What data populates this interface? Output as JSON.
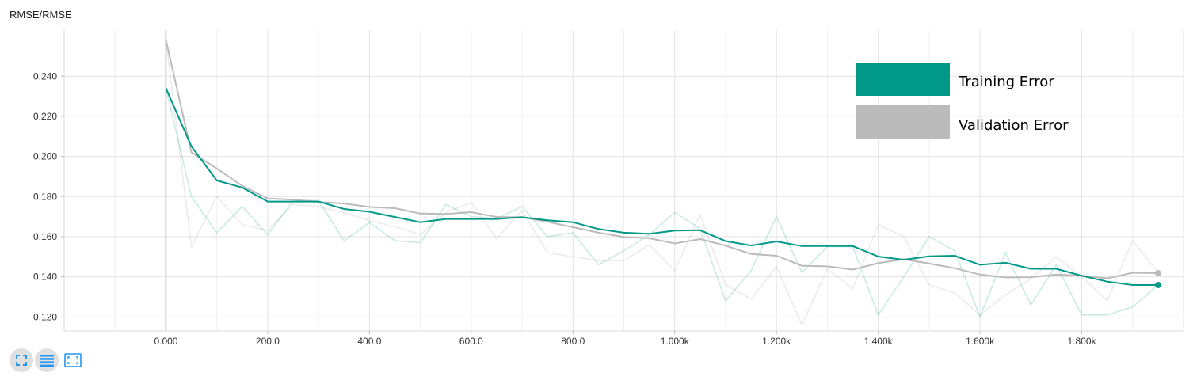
{
  "chart_data": {
    "type": "line",
    "title": "RMSE/RMSE",
    "xlim": [
      -200,
      2000
    ],
    "ylim": [
      0.113,
      0.263
    ],
    "x_ticks": [
      0,
      200,
      400,
      600,
      800,
      1000,
      1200,
      1400,
      1600,
      1800
    ],
    "x_tick_labels": [
      "0.000",
      "200.0",
      "400.0",
      "600.0",
      "800.0",
      "1.000k",
      "1.200k",
      "1.400k",
      "1.600k",
      "1.800k"
    ],
    "y_ticks": [
      0.12,
      0.14,
      0.16,
      0.18,
      0.2,
      0.22,
      0.24
    ],
    "y_tick_labels": [
      "0.120",
      "0.140",
      "0.160",
      "0.180",
      "0.200",
      "0.220",
      "0.240"
    ],
    "grid": true,
    "legend_position": "top-right",
    "x": [
      0,
      50,
      100,
      150,
      200,
      250,
      300,
      350,
      400,
      450,
      500,
      550,
      600,
      650,
      700,
      750,
      800,
      850,
      900,
      950,
      1000,
      1050,
      1100,
      1150,
      1200,
      1250,
      1300,
      1350,
      1400,
      1450,
      1500,
      1550,
      1600,
      1650,
      1700,
      1750,
      1800,
      1850,
      1900,
      1950
    ],
    "series": [
      {
        "name": "Training Error",
        "color": "#009988",
        "smoothed": [
          0.234,
          0.205,
          0.188,
          0.1845,
          0.1775,
          0.1775,
          0.1775,
          0.1738,
          0.1724,
          0.1698,
          0.1672,
          0.1688,
          0.1688,
          0.1688,
          0.1697,
          0.1682,
          0.1672,
          0.1638,
          0.162,
          0.1614,
          0.163,
          0.1632,
          0.1578,
          0.1556,
          0.1576,
          0.1553,
          0.1553,
          0.1553,
          0.1501,
          0.1485,
          0.1502,
          0.1505,
          0.146,
          0.147,
          0.144,
          0.144,
          0.1405,
          0.1376,
          0.1359,
          0.1359
        ],
        "raw": [
          0.234,
          0.18,
          0.162,
          0.175,
          0.161,
          0.178,
          0.178,
          0.158,
          0.167,
          0.158,
          0.157,
          0.176,
          0.17,
          0.169,
          0.175,
          0.16,
          0.162,
          0.146,
          0.153,
          0.161,
          0.172,
          0.164,
          0.128,
          0.143,
          0.17,
          0.142,
          0.155,
          0.155,
          0.121,
          0.14,
          0.16,
          0.153,
          0.12,
          0.152,
          0.126,
          0.146,
          0.121,
          0.121,
          0.125,
          0.136
        ]
      },
      {
        "name": "Validation Error",
        "color": "#bbbbbb",
        "smoothed": [
          0.258,
          0.202,
          0.194,
          0.1853,
          0.179,
          0.1785,
          0.1773,
          0.1765,
          0.1748,
          0.1742,
          0.1715,
          0.1713,
          0.1722,
          0.1698,
          0.1697,
          0.1674,
          0.1647,
          0.162,
          0.1598,
          0.1592,
          0.1566,
          0.1588,
          0.1555,
          0.1514,
          0.1505,
          0.1455,
          0.1452,
          0.1436,
          0.1468,
          0.1488,
          0.1466,
          0.1443,
          0.1411,
          0.1397,
          0.1398,
          0.1411,
          0.1406,
          0.1392,
          0.142,
          0.1418
        ],
        "raw": [
          0.258,
          0.155,
          0.18,
          0.166,
          0.163,
          0.176,
          0.175,
          0.172,
          0.168,
          0.165,
          0.161,
          0.172,
          0.177,
          0.159,
          0.173,
          0.152,
          0.15,
          0.148,
          0.148,
          0.156,
          0.143,
          0.171,
          0.136,
          0.129,
          0.145,
          0.116,
          0.144,
          0.134,
          0.166,
          0.16,
          0.136,
          0.132,
          0.121,
          0.131,
          0.139,
          0.15,
          0.14,
          0.128,
          0.158,
          0.142
        ]
      }
    ]
  },
  "legend": {
    "training_label": "Training Error",
    "validation_label": "Validation Error"
  },
  "toolbar": {
    "fullscreen_icon": "fullscreen-icon",
    "log_scale_icon": "log-scale-icon",
    "fit_domain_icon": "fit-domain-icon",
    "accent_color": "#2196f3"
  }
}
